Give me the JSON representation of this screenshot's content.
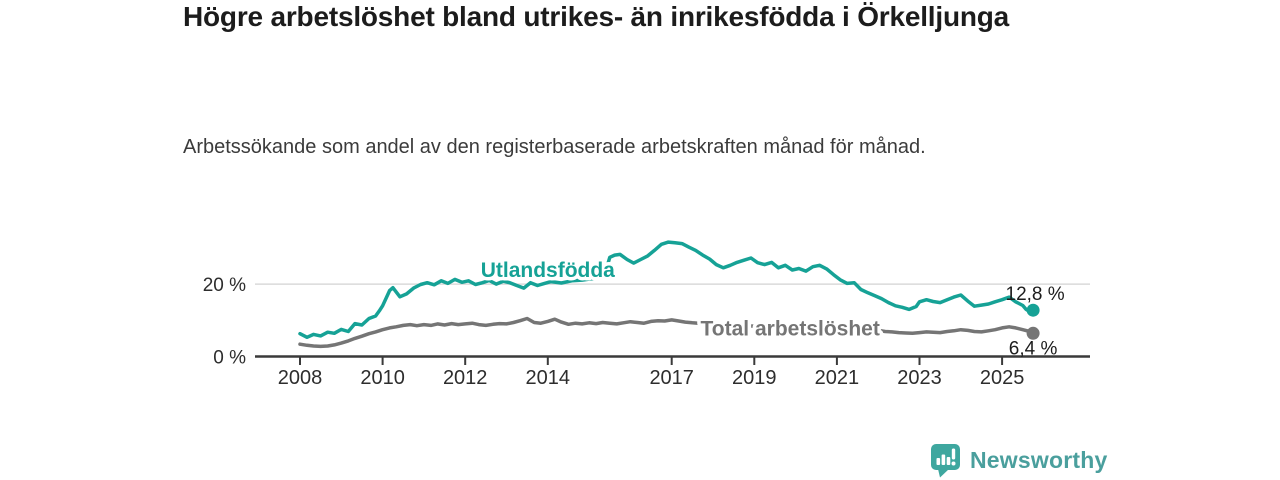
{
  "header": {
    "title": "Högre arbetslöshet bland utrikes- än inrikesfödda i Örkelljunga",
    "subtitle": "Arbetssökande som andel av den registerbaserade arbetskraften månad för månad."
  },
  "colors": {
    "accent_teal": "#16a296",
    "line_gray": "#757575",
    "axis": "#3a3a3a",
    "tick_label": "#2d2d2d",
    "gridline": "#d9d9d9",
    "value_label": "#1c1c1c",
    "brand_teal": "#4a9f9d",
    "logo_teal": "#3ea79f"
  },
  "footer": {
    "brand": "Newsworthy",
    "logo_icon": "bar-chart-speech-bubble"
  },
  "chart_data": {
    "type": "line",
    "unit": "%",
    "grid": "horizontal-only",
    "legend_position": "inline-labels",
    "x_axis": {
      "tick_labels": [
        "2008",
        "2010",
        "2012",
        "2014",
        "2017",
        "2019",
        "2021",
        "2023",
        "2025"
      ],
      "tick_years": [
        2008,
        2010,
        2012,
        2014,
        2017,
        2019,
        2021,
        2023,
        2025
      ],
      "range": [
        2006.9,
        2027.1
      ]
    },
    "y_axis": {
      "ticks": [
        {
          "value": 0,
          "label": "0 %"
        },
        {
          "value": 20,
          "label": "20 %"
        }
      ],
      "gridlines": [
        20
      ],
      "range": [
        0,
        33
      ]
    },
    "series": [
      {
        "name": "Utlandsfödda",
        "color": "#16a296",
        "end_label": "12,8 %",
        "end_value": 12.8,
        "end_label_position": "above",
        "label_at": [
          2014.0,
          23.9
        ],
        "points": [
          [
            2008.0,
            6.3
          ],
          [
            2008.17,
            5.3
          ],
          [
            2008.33,
            6.1
          ],
          [
            2008.5,
            5.7
          ],
          [
            2008.67,
            6.7
          ],
          [
            2008.83,
            6.4
          ],
          [
            2009.0,
            7.5
          ],
          [
            2009.17,
            6.9
          ],
          [
            2009.33,
            9.1
          ],
          [
            2009.5,
            8.7
          ],
          [
            2009.67,
            10.5
          ],
          [
            2009.83,
            11.2
          ],
          [
            2009.92,
            12.6
          ],
          [
            2010.0,
            14.0
          ],
          [
            2010.17,
            18.2
          ],
          [
            2010.25,
            19.0
          ],
          [
            2010.42,
            16.5
          ],
          [
            2010.58,
            17.3
          ],
          [
            2010.75,
            18.9
          ],
          [
            2010.92,
            19.9
          ],
          [
            2011.08,
            20.4
          ],
          [
            2011.25,
            19.8
          ],
          [
            2011.42,
            20.9
          ],
          [
            2011.58,
            20.2
          ],
          [
            2011.75,
            21.3
          ],
          [
            2011.92,
            20.5
          ],
          [
            2012.08,
            20.9
          ],
          [
            2012.25,
            19.9
          ],
          [
            2012.42,
            20.4
          ],
          [
            2012.58,
            21.0
          ],
          [
            2012.75,
            20.0
          ],
          [
            2012.92,
            20.8
          ],
          [
            2013.08,
            20.4
          ],
          [
            2013.25,
            19.6
          ],
          [
            2013.42,
            18.9
          ],
          [
            2013.58,
            20.4
          ],
          [
            2013.75,
            19.6
          ],
          [
            2013.92,
            20.2
          ],
          [
            2014.08,
            20.7
          ],
          [
            2014.33,
            20.3
          ],
          [
            2014.58,
            20.9
          ],
          [
            2014.83,
            21.1
          ],
          [
            2015.08,
            21.5
          ],
          [
            2015.25,
            22.1
          ],
          [
            2015.42,
            24.2
          ],
          [
            2015.5,
            27.4
          ],
          [
            2015.62,
            28.0
          ],
          [
            2015.75,
            28.2
          ],
          [
            2015.92,
            26.8
          ],
          [
            2016.08,
            25.8
          ],
          [
            2016.25,
            26.8
          ],
          [
            2016.42,
            27.8
          ],
          [
            2016.58,
            29.3
          ],
          [
            2016.75,
            31.0
          ],
          [
            2016.92,
            31.6
          ],
          [
            2017.08,
            31.4
          ],
          [
            2017.25,
            31.2
          ],
          [
            2017.42,
            30.2
          ],
          [
            2017.58,
            29.3
          ],
          [
            2017.75,
            28.0
          ],
          [
            2017.92,
            26.9
          ],
          [
            2018.08,
            25.4
          ],
          [
            2018.25,
            24.5
          ],
          [
            2018.42,
            25.2
          ],
          [
            2018.58,
            26.0
          ],
          [
            2018.75,
            26.6
          ],
          [
            2018.92,
            27.2
          ],
          [
            2019.08,
            25.9
          ],
          [
            2019.25,
            25.4
          ],
          [
            2019.42,
            26.0
          ],
          [
            2019.58,
            24.5
          ],
          [
            2019.75,
            25.2
          ],
          [
            2019.92,
            23.9
          ],
          [
            2020.08,
            24.3
          ],
          [
            2020.25,
            23.6
          ],
          [
            2020.42,
            24.8
          ],
          [
            2020.58,
            25.2
          ],
          [
            2020.75,
            24.2
          ],
          [
            2020.92,
            22.6
          ],
          [
            2021.08,
            21.2
          ],
          [
            2021.25,
            20.2
          ],
          [
            2021.42,
            20.4
          ],
          [
            2021.58,
            18.5
          ],
          [
            2021.75,
            17.6
          ],
          [
            2021.92,
            16.8
          ],
          [
            2022.08,
            16.0
          ],
          [
            2022.25,
            14.9
          ],
          [
            2022.42,
            14.0
          ],
          [
            2022.58,
            13.6
          ],
          [
            2022.75,
            13.0
          ],
          [
            2022.92,
            13.8
          ],
          [
            2023.0,
            15.1
          ],
          [
            2023.17,
            15.7
          ],
          [
            2023.33,
            15.2
          ],
          [
            2023.5,
            14.9
          ],
          [
            2023.67,
            15.7
          ],
          [
            2023.83,
            16.4
          ],
          [
            2024.0,
            17.0
          ],
          [
            2024.17,
            15.3
          ],
          [
            2024.33,
            13.9
          ],
          [
            2024.5,
            14.2
          ],
          [
            2024.67,
            14.5
          ],
          [
            2024.83,
            15.1
          ],
          [
            2025.0,
            15.7
          ],
          [
            2025.17,
            16.4
          ],
          [
            2025.33,
            15.1
          ],
          [
            2025.5,
            14.1
          ],
          [
            2025.58,
            13.0
          ],
          [
            2025.67,
            12.4
          ],
          [
            2025.75,
            12.8
          ]
        ]
      },
      {
        "name": "Total arbetslöshet",
        "color": "#757575",
        "end_label": "6,4 %",
        "end_value": 6.4,
        "end_label_position": "below",
        "label_at": [
          2019.87,
          7.8
        ],
        "points": [
          [
            2008.0,
            3.4
          ],
          [
            2008.17,
            3.1
          ],
          [
            2008.33,
            2.9
          ],
          [
            2008.5,
            2.8
          ],
          [
            2008.67,
            2.9
          ],
          [
            2008.83,
            3.2
          ],
          [
            2009.0,
            3.7
          ],
          [
            2009.17,
            4.3
          ],
          [
            2009.33,
            5.0
          ],
          [
            2009.5,
            5.6
          ],
          [
            2009.67,
            6.3
          ],
          [
            2009.83,
            6.8
          ],
          [
            2010.0,
            7.4
          ],
          [
            2010.17,
            7.9
          ],
          [
            2010.33,
            8.2
          ],
          [
            2010.5,
            8.6
          ],
          [
            2010.67,
            8.8
          ],
          [
            2010.83,
            8.5
          ],
          [
            2011.0,
            8.8
          ],
          [
            2011.17,
            8.6
          ],
          [
            2011.33,
            9.0
          ],
          [
            2011.5,
            8.7
          ],
          [
            2011.67,
            9.1
          ],
          [
            2011.83,
            8.8
          ],
          [
            2012.0,
            9.0
          ],
          [
            2012.17,
            9.2
          ],
          [
            2012.33,
            8.8
          ],
          [
            2012.5,
            8.6
          ],
          [
            2012.67,
            8.9
          ],
          [
            2012.83,
            9.1
          ],
          [
            2013.0,
            9.0
          ],
          [
            2013.17,
            9.4
          ],
          [
            2013.33,
            9.9
          ],
          [
            2013.5,
            10.5
          ],
          [
            2013.67,
            9.4
          ],
          [
            2013.83,
            9.2
          ],
          [
            2014.0,
            9.7
          ],
          [
            2014.17,
            10.3
          ],
          [
            2014.33,
            9.5
          ],
          [
            2014.5,
            8.9
          ],
          [
            2014.67,
            9.2
          ],
          [
            2014.83,
            9.0
          ],
          [
            2015.0,
            9.3
          ],
          [
            2015.17,
            9.1
          ],
          [
            2015.33,
            9.4
          ],
          [
            2015.5,
            9.2
          ],
          [
            2015.67,
            9.0
          ],
          [
            2015.83,
            9.3
          ],
          [
            2016.0,
            9.6
          ],
          [
            2016.17,
            9.4
          ],
          [
            2016.33,
            9.2
          ],
          [
            2016.5,
            9.7
          ],
          [
            2016.67,
            9.9
          ],
          [
            2016.83,
            9.8
          ],
          [
            2017.0,
            10.1
          ],
          [
            2017.17,
            9.8
          ],
          [
            2017.33,
            9.5
          ],
          [
            2017.5,
            9.3
          ],
          [
            2017.75,
            9.1
          ],
          [
            2018.0,
            8.9
          ],
          [
            2018.25,
            8.7
          ],
          [
            2018.5,
            8.6
          ],
          [
            2018.75,
            8.5
          ],
          [
            2019.0,
            8.4
          ],
          [
            2019.25,
            8.3
          ],
          [
            2019.5,
            8.4
          ],
          [
            2019.75,
            8.3
          ],
          [
            2020.0,
            8.6
          ],
          [
            2020.25,
            9.1
          ],
          [
            2020.5,
            9.3
          ],
          [
            2020.75,
            9.1
          ],
          [
            2021.0,
            8.8
          ],
          [
            2021.25,
            8.4
          ],
          [
            2021.5,
            8.0
          ],
          [
            2021.75,
            7.6
          ],
          [
            2022.0,
            7.2
          ],
          [
            2022.17,
            6.9
          ],
          [
            2022.33,
            6.8
          ],
          [
            2022.5,
            6.6
          ],
          [
            2022.67,
            6.5
          ],
          [
            2022.83,
            6.4
          ],
          [
            2023.0,
            6.6
          ],
          [
            2023.17,
            6.8
          ],
          [
            2023.33,
            6.7
          ],
          [
            2023.5,
            6.6
          ],
          [
            2023.67,
            6.9
          ],
          [
            2023.83,
            7.1
          ],
          [
            2024.0,
            7.4
          ],
          [
            2024.17,
            7.2
          ],
          [
            2024.33,
            6.9
          ],
          [
            2024.5,
            6.8
          ],
          [
            2024.67,
            7.1
          ],
          [
            2024.83,
            7.4
          ],
          [
            2025.0,
            7.9
          ],
          [
            2025.17,
            8.2
          ],
          [
            2025.33,
            7.9
          ],
          [
            2025.5,
            7.4
          ],
          [
            2025.67,
            6.9
          ],
          [
            2025.75,
            6.4
          ]
        ]
      }
    ]
  }
}
